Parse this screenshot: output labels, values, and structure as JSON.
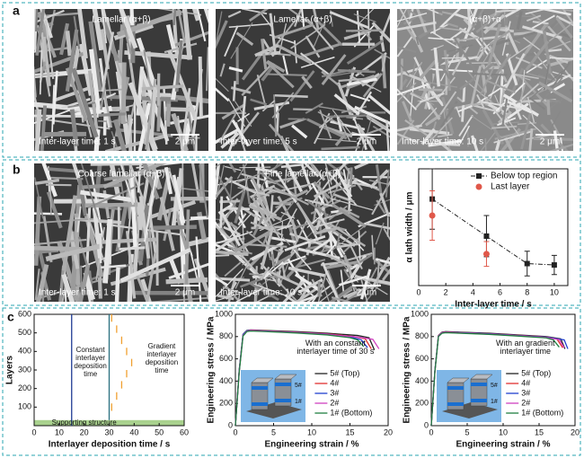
{
  "panel_letters": [
    "a",
    "b",
    "c"
  ],
  "images": [
    {
      "label": "Lamellar (α+β)",
      "time": "Inter-layer time: 1 s",
      "scale": "2 μm"
    },
    {
      "label": "Lamellar (α+β)",
      "time": "Inter-layer time: 5 s",
      "scale": "2 μm"
    },
    {
      "label": "(α+β)+α",
      "time": "Inter-layer time: 10 s",
      "scale": "2 μm"
    },
    {
      "label": "Coarse lamellar (α+β)",
      "time": "Inter-layer time: 1 s",
      "scale": "2 μm"
    },
    {
      "label": "Fine lamellar (α+β)",
      "time": "Inter-layer time: 10 s",
      "scale": "2 μm"
    }
  ],
  "chart_data": [
    {
      "type": "errorbar",
      "xlabel": "Inter-layer time / s",
      "ylabel": "α lath width / μm",
      "xlim": [
        0,
        11
      ],
      "xticks": [
        0,
        2,
        4,
        6,
        8,
        10
      ],
      "ylim": [
        0.1,
        0.95
      ],
      "legend": "upper right",
      "series": [
        {
          "name": "Below top region",
          "color": "#222222",
          "marker": "square",
          "x": [
            1,
            5,
            8,
            10
          ],
          "values": [
            0.73,
            0.46,
            0.26,
            0.25
          ],
          "errors": [
            0.22,
            0.15,
            0.09,
            0.07
          ]
        },
        {
          "name": "Last layer",
          "color": "#e0584a",
          "marker": "circle",
          "x": [
            1,
            5
          ],
          "values": [
            0.61,
            0.33
          ],
          "errors": [
            0.18,
            0.09
          ]
        }
      ]
    },
    {
      "type": "line",
      "xlabel": "Interlayer deposition time / s",
      "ylabel": "Layers",
      "xlim": [
        0,
        60
      ],
      "xticks": [
        0,
        10,
        20,
        30,
        40,
        50,
        60
      ],
      "ylim": [
        0,
        600
      ],
      "yticks": [
        100,
        200,
        300,
        400,
        500,
        600
      ],
      "annotations": [
        "Constant interlayer deposition time",
        "Gradient interlayer deposition time",
        "Supporting structure"
      ],
      "support_layers": [
        0,
        30
      ],
      "support_color": "#a9d18e",
      "series": [
        {
          "color": "#1f3a93",
          "x": [
            15,
            15
          ],
          "values": [
            0,
            600
          ]
        },
        {
          "color": "#2a6f7f",
          "x": [
            30,
            30
          ],
          "values": [
            30,
            600
          ]
        },
        {
          "color": "#f0a030",
          "x": [
            31,
            31,
            31,
            33,
            33,
            33,
            35,
            35,
            35,
            37,
            37,
            37,
            39,
            39,
            39,
            37,
            37,
            37,
            35,
            35,
            35,
            33,
            33,
            33,
            31,
            31
          ],
          "values": [
            560,
            600,
            null,
            500,
            540,
            null,
            440,
            480,
            null,
            380,
            420,
            null,
            320,
            360,
            null,
            260,
            300,
            null,
            200,
            240,
            null,
            140,
            180,
            null,
            80,
            120
          ]
        }
      ]
    },
    {
      "type": "line",
      "xlabel": "Engineering strain / %",
      "ylabel": "Engineering stress / MPa",
      "xlim": [
        0,
        20
      ],
      "xticks": [
        0,
        5,
        10,
        15,
        20
      ],
      "ylim": [
        0,
        1000
      ],
      "yticks": [
        0,
        200,
        400,
        600,
        800,
        1000
      ],
      "annotations": [
        "With an constant interlayer time of 30 s"
      ],
      "inset_labels": [
        "5#",
        "1#"
      ],
      "legend": "lower right",
      "series": [
        {
          "name": "5# (Top)",
          "color": "#222222",
          "x": [
            0,
            0.5,
            1,
            1.5,
            2,
            4,
            8,
            12,
            16,
            17.5,
            18.2
          ],
          "values": [
            0,
            500,
            820,
            855,
            860,
            855,
            845,
            830,
            810,
            790,
            680
          ]
        },
        {
          "name": "4#",
          "color": "#e03030",
          "x": [
            0,
            0.5,
            1,
            1.5,
            2,
            4,
            8,
            12,
            15.5,
            17,
            17.8
          ],
          "values": [
            0,
            490,
            815,
            850,
            858,
            852,
            840,
            825,
            800,
            780,
            690
          ]
        },
        {
          "name": "3#",
          "color": "#2040d0",
          "x": [
            0,
            0.5,
            1,
            1.5,
            2,
            4,
            8,
            12,
            15,
            16.5,
            17.3
          ],
          "values": [
            0,
            495,
            818,
            852,
            856,
            850,
            838,
            822,
            798,
            770,
            700
          ]
        },
        {
          "name": "2#",
          "color": "#d040c0",
          "x": [
            0,
            0.5,
            1,
            1.5,
            2,
            4,
            8,
            12,
            16,
            18,
            18.8
          ],
          "values": [
            0,
            485,
            810,
            848,
            855,
            848,
            836,
            820,
            796,
            775,
            690
          ]
        },
        {
          "name": "1# (Bottom)",
          "color": "#208040",
          "x": [
            0,
            0.5,
            1,
            1.5,
            2,
            4,
            8,
            12,
            15,
            16,
            16.8
          ],
          "values": [
            0,
            480,
            805,
            845,
            850,
            845,
            832,
            815,
            790,
            770,
            710
          ]
        }
      ]
    },
    {
      "type": "line",
      "xlabel": "Engineering strain / %",
      "ylabel": "Engineering stress / MPa",
      "xlim": [
        0,
        20
      ],
      "xticks": [
        0,
        5,
        10,
        15,
        20
      ],
      "ylim": [
        0,
        1000
      ],
      "yticks": [
        0,
        200,
        400,
        600,
        800,
        1000
      ],
      "annotations": [
        "With an gradient interlayer time"
      ],
      "inset_labels": [
        "5#",
        "1#"
      ],
      "legend": "lower right",
      "series": [
        {
          "name": "5# (Top)",
          "color": "#222222",
          "x": [
            0,
            0.5,
            1,
            1.5,
            2,
            4,
            8,
            12,
            16,
            18,
            18.6
          ],
          "values": [
            0,
            490,
            810,
            840,
            845,
            840,
            830,
            815,
            800,
            780,
            690
          ]
        },
        {
          "name": "4#",
          "color": "#e03030",
          "x": [
            0,
            0.5,
            1,
            1.5,
            2,
            4,
            8,
            12,
            16,
            17.5,
            18.3
          ],
          "values": [
            0,
            485,
            808,
            838,
            842,
            836,
            826,
            812,
            796,
            776,
            700
          ]
        },
        {
          "name": "3#",
          "color": "#2040d0",
          "x": [
            0,
            0.5,
            1,
            1.5,
            2,
            4,
            8,
            12,
            16,
            18.5,
            19
          ],
          "values": [
            0,
            488,
            806,
            836,
            840,
            835,
            825,
            810,
            795,
            770,
            690
          ]
        },
        {
          "name": "2#",
          "color": "#d040c0",
          "x": [
            0,
            0.5,
            1,
            1.5,
            2,
            4,
            8,
            12,
            16,
            17.8,
            18.5
          ],
          "values": [
            0,
            482,
            804,
            834,
            838,
            833,
            822,
            808,
            792,
            772,
            700
          ]
        },
        {
          "name": "1# (Bottom)",
          "color": "#208040",
          "x": [
            0,
            0.5,
            1,
            1.5,
            2,
            4,
            8,
            12,
            16,
            17,
            17.8
          ],
          "values": [
            0,
            480,
            800,
            830,
            835,
            830,
            820,
            805,
            788,
            770,
            705
          ]
        }
      ]
    }
  ]
}
